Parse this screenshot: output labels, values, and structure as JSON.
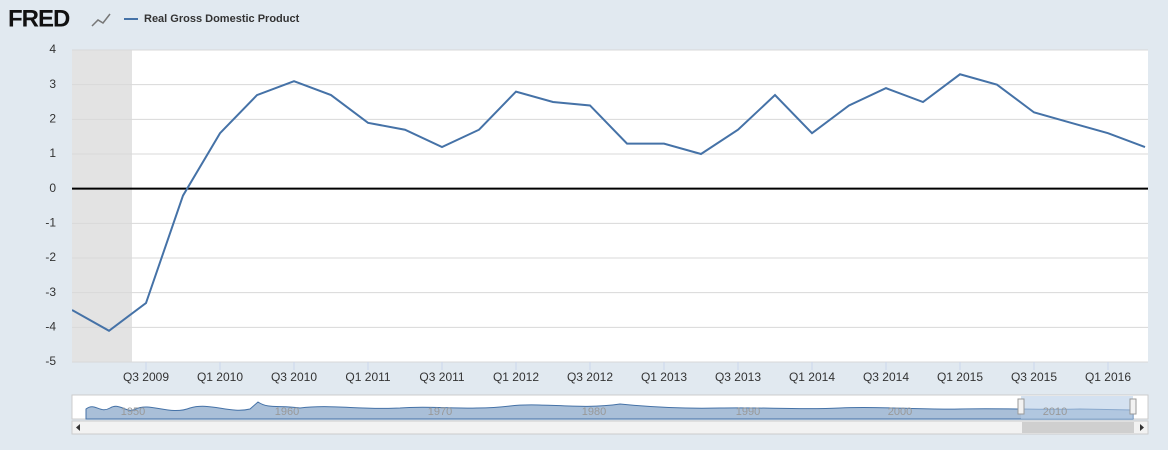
{
  "logo": "FRED",
  "chart_data": {
    "type": "line",
    "categories": [
      null,
      null,
      "Q3 2009",
      null,
      "Q1 2010",
      null,
      "Q3 2010",
      null,
      "Q1 2011",
      null,
      "Q3 2011",
      null,
      "Q1 2012",
      null,
      "Q3 2012",
      null,
      "Q1 2013",
      null,
      "Q3 2013",
      null,
      "Q1 2014",
      null,
      "Q3 2014",
      null,
      "Q1 2015",
      null,
      "Q3 2015",
      null,
      "Q1 2016",
      null
    ],
    "series": [
      {
        "name": "Real Gross Domestic Product",
        "color": "#4572a7",
        "values": [
          -3.5,
          -4.1,
          -3.3,
          -0.2,
          1.6,
          2.7,
          3.1,
          2.7,
          1.9,
          1.7,
          1.2,
          1.7,
          2.8,
          2.5,
          2.4,
          1.3,
          1.3,
          1.0,
          1.7,
          2.7,
          1.6,
          2.4,
          2.9,
          2.5,
          3.3,
          3.0,
          2.2,
          1.9,
          1.6,
          1.2
        ]
      }
    ],
    "ylim": [
      -5,
      4
    ],
    "yticks": [
      -5,
      -4,
      -3,
      -2,
      -1,
      0,
      1,
      2,
      3,
      4
    ],
    "grid": true
  },
  "navigator": {
    "labels": [
      "1950",
      "1960",
      "1970",
      "1980",
      "1990",
      "2000",
      "2010"
    ]
  }
}
